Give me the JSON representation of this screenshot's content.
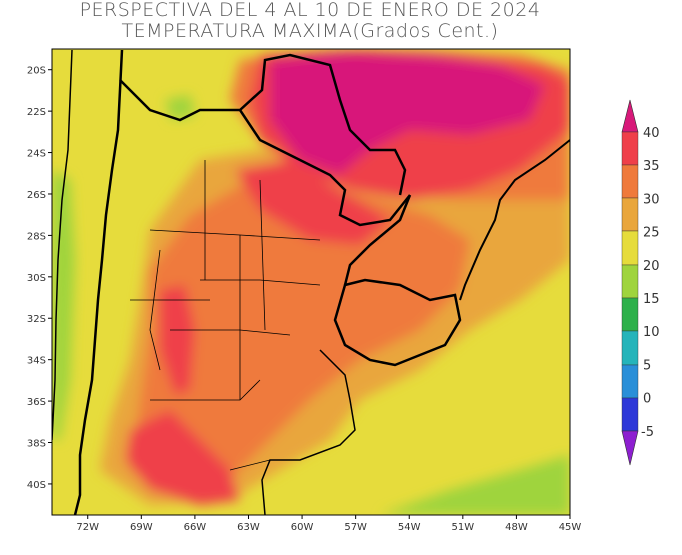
{
  "title": {
    "line1": "PERSPECTIVA DEL 4 AL 10 DE ENERO DE 2024",
    "line2": "TEMPERATURA MAXIMA(Grados Cent.)"
  },
  "map": {
    "lat_ticks": [
      "20S",
      "22S",
      "24S",
      "26S",
      "28S",
      "30S",
      "32S",
      "34S",
      "36S",
      "38S",
      "40S"
    ],
    "lon_ticks": [
      "72W",
      "69W",
      "66W",
      "63W",
      "60W",
      "57W",
      "54W",
      "51W",
      "48W",
      "45W"
    ],
    "lat_range": [
      -41.5,
      -19
    ],
    "lon_range": [
      -74,
      -45
    ]
  },
  "colorbar": {
    "labels": [
      "40",
      "35",
      "30",
      "25",
      "20",
      "15",
      "10",
      "5",
      "0",
      "-5"
    ],
    "colors": {
      "gt40": "#d8197a",
      "35_40": "#ef3f4a",
      "30_35": "#ef7a3c",
      "25_30": "#e9a63c",
      "20_25": "#e6dc3c",
      "15_20": "#9fd43d",
      "10_15": "#2db04a",
      "5_10": "#25b4ba",
      "0_5": "#2a8fd8",
      "m5_0": "#2d38d8",
      "lt_m5": "#8d1fd0"
    }
  }
}
